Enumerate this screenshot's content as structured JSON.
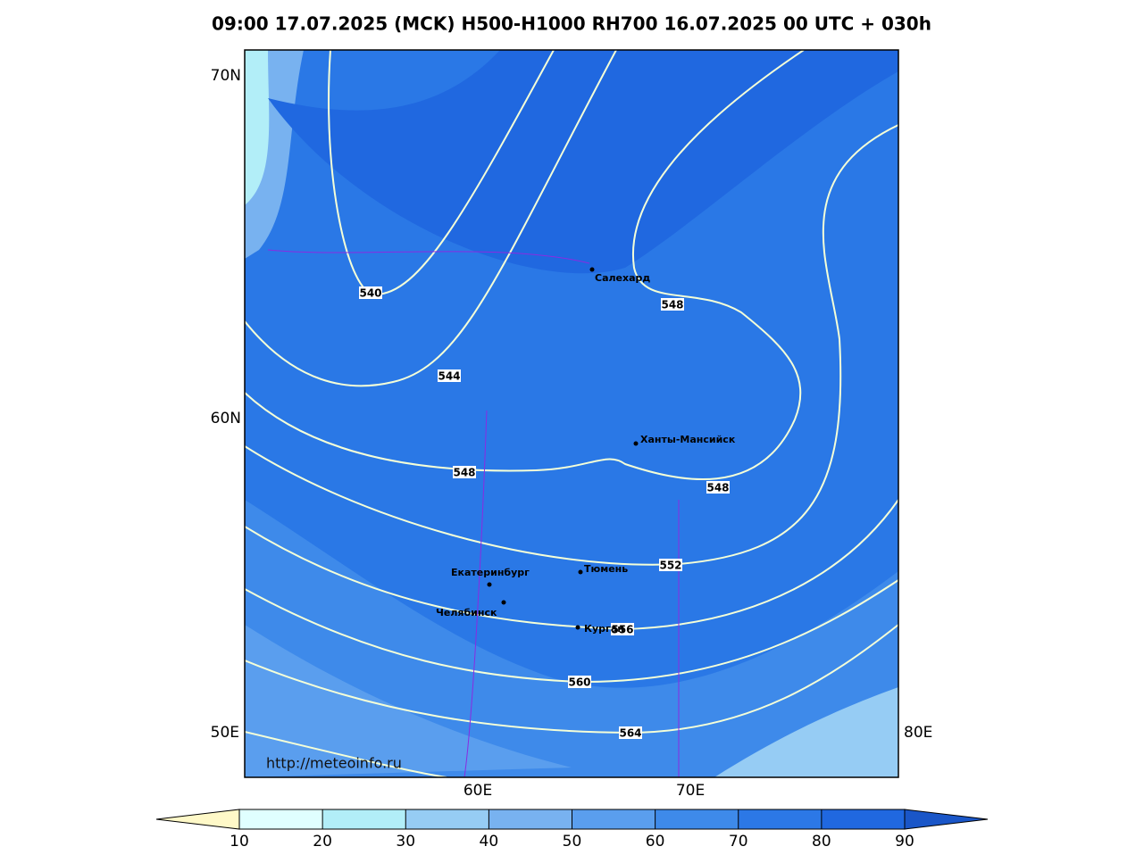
{
  "title": "09:00 17.07.2025 (MCK) H500-H1000 RH700 16.07.2025 00 UTC + 030h",
  "grid_labels": [
    "70N",
    "60N",
    "50E",
    "80E",
    "60E",
    "70E"
  ],
  "contour_labels": [
    540,
    544,
    548,
    548,
    548,
    552,
    556,
    560,
    564
  ],
  "cities": [
    "Салехард",
    "Ханты-Мансийск",
    "Екатеринбург",
    "Тюмень",
    "Челябинск",
    "Курган"
  ],
  "url": "http://meteoinfo.ru",
  "colorbar": {
    "ticks": [
      10,
      20,
      30,
      40,
      50,
      60,
      70,
      80,
      90
    ],
    "colors": [
      "#fff9c8",
      "#e0ffff",
      "#b2eef8",
      "#96ccf4",
      "#78b2f0",
      "#5a9eee",
      "#3e8aea",
      "#2c78e6",
      "#2068e0",
      "#1a56c8"
    ]
  }
}
